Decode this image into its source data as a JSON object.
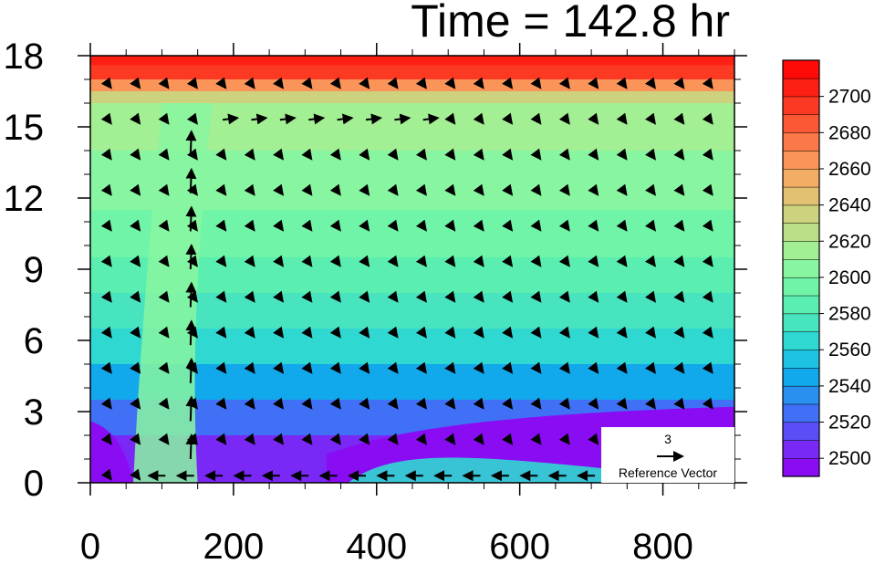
{
  "chart_data": {
    "type": "heatmap",
    "title": "Time = 142.8 hr",
    "x_ticks": [
      0,
      200,
      400,
      600,
      800
    ],
    "y_ticks": [
      0,
      3,
      6,
      9,
      12,
      15,
      18
    ],
    "xlim": [
      0,
      900
    ],
    "ylim": [
      0,
      18
    ],
    "colorbar": {
      "labels": [
        2700,
        2680,
        2660,
        2640,
        2620,
        2600,
        2580,
        2560,
        2540,
        2520,
        2500
      ],
      "levels_bottom_to_top": [
        2490,
        2500,
        2510,
        2520,
        2530,
        2540,
        2550,
        2560,
        2570,
        2580,
        2590,
        2600,
        2610,
        2620,
        2630,
        2640,
        2650,
        2660,
        2670,
        2680,
        2690,
        2700,
        2710
      ],
      "colors_bottom_to_top": [
        "#8a0cf2",
        "#7a28f5",
        "#5c4ef7",
        "#4070f5",
        "#2a90f0",
        "#12a8ec",
        "#1ec2e2",
        "#30d8d2",
        "#48e4c0",
        "#5aefb0",
        "#70f4a8",
        "#88f6a0",
        "#a2ef94",
        "#badf88",
        "#ccd27e",
        "#e2c272",
        "#f4ad64",
        "#fa9458",
        "#fb7848",
        "#fc5836",
        "#fc3a24",
        "#fd1e14",
        "#fe0a08"
      ]
    },
    "field_description": {
      "layers": [
        {
          "y_top": 18,
          "y_bottom": 17.6,
          "value": 2708
        },
        {
          "y_top": 17.6,
          "y_bottom": 17.0,
          "value": 2690
        },
        {
          "y_top": 17.0,
          "y_bottom": 16.5,
          "value": 2660
        },
        {
          "y_top": 16.5,
          "y_bottom": 16.0,
          "value": 2630
        },
        {
          "y_top": 16.0,
          "y_bottom": 14.0,
          "value": 2615
        },
        {
          "y_top": 14.0,
          "y_bottom": 11.5,
          "value": 2602
        },
        {
          "y_top": 11.5,
          "y_bottom": 9.5,
          "value": 2595
        },
        {
          "y_top": 9.5,
          "y_bottom": 8.0,
          "value": 2588
        },
        {
          "y_top": 8.0,
          "y_bottom": 6.5,
          "value": 2575
        },
        {
          "y_top": 6.5,
          "y_bottom": 5.0,
          "value": 2562
        },
        {
          "y_top": 5.0,
          "y_bottom": 3.5,
          "value": 2545
        },
        {
          "y_top": 3.5,
          "y_bottom": 2.0,
          "value": 2525
        },
        {
          "y_top": 2.0,
          "y_bottom": 0.0,
          "value": 2505
        }
      ]
    },
    "reference_vector": {
      "magnitude": "3",
      "label": "Reference Vector"
    },
    "grid": false
  }
}
